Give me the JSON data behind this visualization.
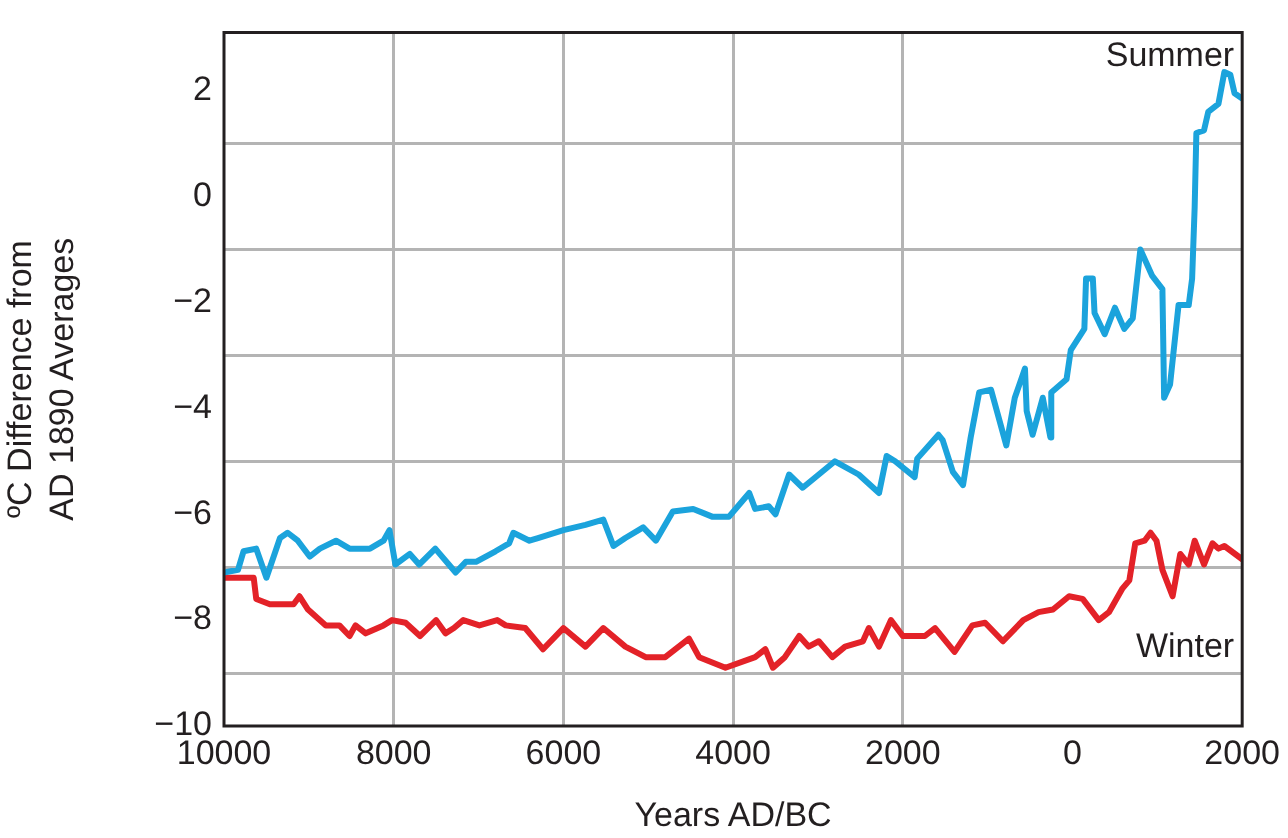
{
  "chart_data": {
    "type": "line",
    "xlabel": "Years AD/BC",
    "ylabel": "ºC Difference from AD 1890 Averages",
    "xlim": [
      -10000,
      2000
    ],
    "xticks": [
      {
        "value": -10000,
        "label": "10000"
      },
      {
        "value": -8000,
        "label": "8000"
      },
      {
        "value": -6000,
        "label": "6000"
      },
      {
        "value": -4000,
        "label": "4000"
      },
      {
        "value": -2000,
        "label": "2000"
      },
      0,
      2000
    ],
    "ylim": [
      -10,
      3.1
    ],
    "yticks": [
      {
        "value": -10,
        "label": "−10"
      },
      {
        "value": -9,
        "label": null
      },
      {
        "value": -8,
        "label": "−8"
      },
      {
        "value": -7,
        "label": null
      },
      {
        "value": -6,
        "label": "−6"
      },
      {
        "value": -5,
        "label": null
      },
      {
        "value": -4,
        "label": "−4"
      },
      {
        "value": -3,
        "label": null
      },
      {
        "value": -2,
        "label": "−2"
      },
      {
        "value": -1,
        "label": null
      },
      0,
      {
        "value": 1,
        "label": null
      },
      2
    ],
    "grid": true,
    "legend": false,
    "marker": "none",
    "line_style": "solid",
    "series": [
      {
        "name": "Summer",
        "color": "#1ba3dc",
        "x": [
          -10000,
          -9835,
          -9770,
          -9620,
          -9500,
          -9340,
          -9250,
          -9130,
          -8990,
          -8870,
          -8680,
          -8520,
          -8280,
          -8120,
          -8050,
          -7980,
          -7810,
          -7700,
          -7510,
          -7270,
          -7150,
          -7030,
          -6800,
          -6640,
          -6590,
          -6400,
          -6300,
          -6000,
          -5740,
          -5530,
          -5410,
          -5270,
          -5060,
          -4910,
          -4710,
          -4470,
          -4240,
          -4050,
          -3810,
          -3740,
          -3580,
          -3500,
          -3340,
          -3180,
          -2800,
          -2520,
          -2280,
          -2190,
          -2090,
          -1860,
          -1830,
          -1580,
          -1530,
          -1410,
          -1290,
          -1200,
          -1100,
          -960,
          -780,
          -680,
          -560,
          -540,
          -470,
          -350,
          -260,
          -250,
          -70,
          -20,
          140,
          160,
          240,
          260,
          380,
          500,
          610,
          710,
          800,
          940,
          1060,
          1080,
          1150,
          1250,
          1370,
          1410,
          1440,
          1460,
          1550,
          1600,
          1720,
          1790,
          1860,
          1910,
          2000
        ],
        "values": [
          -7.1,
          -7.05,
          -6.7,
          -6.65,
          -7.2,
          -6.45,
          -6.35,
          -6.5,
          -6.8,
          -6.65,
          -6.5,
          -6.65,
          -6.65,
          -6.5,
          -6.3,
          -6.95,
          -6.75,
          -6.95,
          -6.65,
          -7.1,
          -6.9,
          -6.9,
          -6.7,
          -6.55,
          -6.35,
          -6.5,
          -6.45,
          -6.3,
          -6.2,
          -6.1,
          -6.6,
          -6.45,
          -6.25,
          -6.5,
          -5.95,
          -5.9,
          -6.05,
          -6.05,
          -5.6,
          -5.9,
          -5.85,
          -6.0,
          -5.25,
          -5.5,
          -5.0,
          -5.25,
          -5.6,
          -4.9,
          -5.0,
          -5.3,
          -4.95,
          -4.5,
          -4.6,
          -5.2,
          -5.45,
          -4.55,
          -3.7,
          -3.65,
          -4.7,
          -3.8,
          -3.25,
          -4.05,
          -4.5,
          -3.8,
          -4.55,
          -3.7,
          -3.45,
          -2.9,
          -2.5,
          -1.55,
          -1.55,
          -2.2,
          -2.6,
          -2.1,
          -2.5,
          -2.3,
          -1.0,
          -1.5,
          -1.75,
          -3.8,
          -3.55,
          -2.05,
          -2.05,
          -1.55,
          -0.2,
          1.2,
          1.25,
          1.6,
          1.75,
          2.35,
          2.3,
          1.95,
          1.85
        ]
      },
      {
        "name": "Winter",
        "color": "#e32228",
        "x": [
          -10000,
          -9650,
          -9620,
          -9460,
          -9180,
          -9110,
          -9010,
          -8800,
          -8640,
          -8520,
          -8450,
          -8330,
          -8120,
          -8020,
          -7860,
          -7690,
          -7500,
          -7390,
          -7290,
          -7180,
          -6990,
          -6780,
          -6680,
          -6450,
          -6240,
          -6000,
          -5740,
          -5530,
          -5270,
          -5030,
          -4800,
          -4520,
          -4400,
          -4090,
          -3740,
          -3620,
          -3530,
          -3390,
          -3220,
          -3110,
          -2990,
          -2830,
          -2680,
          -2470,
          -2400,
          -2280,
          -2140,
          -2000,
          -1740,
          -1620,
          -1390,
          -1180,
          -1030,
          -820,
          -580,
          -400,
          -230,
          -40,
          120,
          310,
          430,
          590,
          670,
          740,
          850,
          920,
          990,
          1060,
          1180,
          1270,
          1370,
          1440,
          1550,
          1650,
          1720,
          1790,
          2000
        ],
        "values": [
          -7.2,
          -7.2,
          -7.6,
          -7.7,
          -7.7,
          -7.55,
          -7.8,
          -8.1,
          -8.1,
          -8.3,
          -8.1,
          -8.25,
          -8.1,
          -8.0,
          -8.05,
          -8.3,
          -8.0,
          -8.25,
          -8.15,
          -8.0,
          -8.1,
          -8.0,
          -8.1,
          -8.15,
          -8.55,
          -8.15,
          -8.5,
          -8.15,
          -8.5,
          -8.7,
          -8.7,
          -8.35,
          -8.7,
          -8.9,
          -8.7,
          -8.55,
          -8.9,
          -8.7,
          -8.3,
          -8.5,
          -8.4,
          -8.7,
          -8.5,
          -8.4,
          -8.15,
          -8.5,
          -8.0,
          -8.3,
          -8.3,
          -8.15,
          -8.6,
          -8.1,
          -8.05,
          -8.4,
          -8.0,
          -7.85,
          -7.8,
          -7.55,
          -7.6,
          -8.0,
          -7.85,
          -7.4,
          -7.25,
          -6.55,
          -6.5,
          -6.35,
          -6.5,
          -7.05,
          -7.55,
          -6.75,
          -6.95,
          -6.5,
          -6.95,
          -6.55,
          -6.65,
          -6.6,
          -6.85
        ]
      }
    ]
  }
}
